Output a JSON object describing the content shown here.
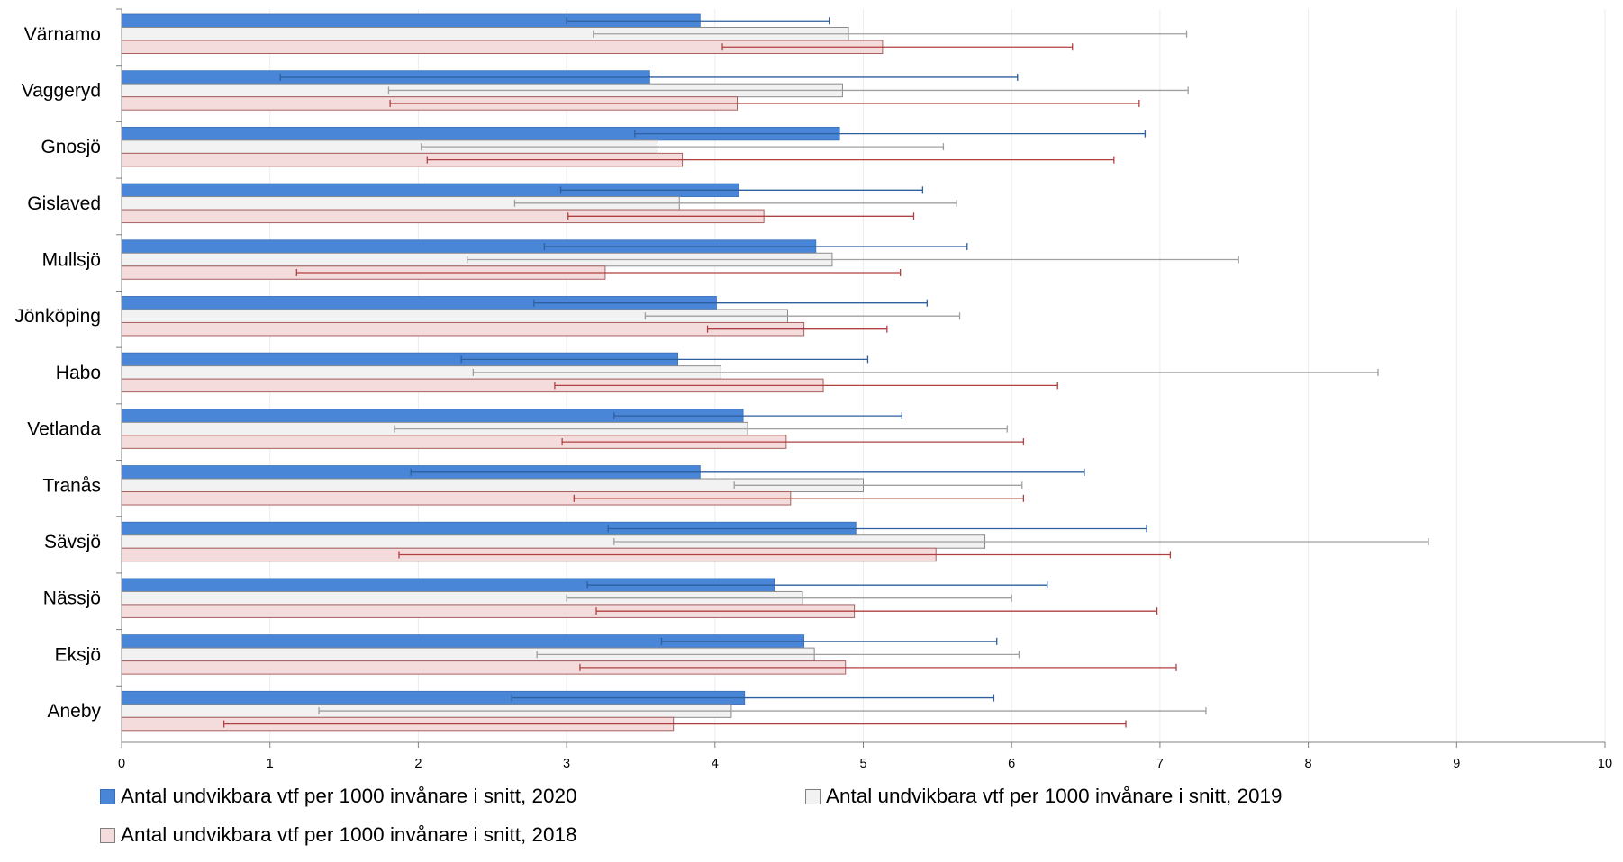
{
  "chart_data": {
    "type": "bar",
    "orientation": "horizontal",
    "categories": [
      "Värnamo",
      "Vaggeryd",
      "Gnosjö",
      "Gislaved",
      "Mullsjö",
      "Jönköping",
      "Habo",
      "Vetlanda",
      "Tranås",
      "Sävsjö",
      "Nässjö",
      "Eksjö",
      "Aneby"
    ],
    "xlim": [
      0,
      10
    ],
    "x_ticks": [
      "0",
      "1",
      "2",
      "3",
      "4",
      "5",
      "6",
      "7",
      "8",
      "9",
      "10"
    ],
    "grid": true,
    "legend_position": "bottom",
    "error_bars": true,
    "series": [
      {
        "name": "Antal undvikbara vtf per 1000 invånare i snitt, 2020",
        "color": "#4a86d8",
        "values": [
          3.9,
          3.56,
          4.84,
          4.16,
          4.68,
          4.01,
          3.75,
          4.19,
          3.9,
          4.95,
          4.4,
          4.6,
          4.2
        ],
        "error_low": [
          3.0,
          1.07,
          3.46,
          2.96,
          2.85,
          2.78,
          2.29,
          3.32,
          1.95,
          3.28,
          3.14,
          3.64,
          2.63
        ],
        "error_high": [
          4.77,
          6.04,
          6.9,
          5.4,
          5.7,
          5.43,
          5.03,
          5.26,
          6.49,
          6.91,
          6.24,
          5.9,
          5.88
        ]
      },
      {
        "name": "Antal undvikbara vtf per 1000 invånare i snitt, 2019",
        "color": "#f2f2f2",
        "values": [
          4.9,
          4.86,
          3.61,
          3.76,
          4.79,
          4.49,
          4.04,
          4.22,
          5.0,
          5.82,
          4.59,
          4.67,
          4.11
        ],
        "error_low": [
          3.18,
          1.8,
          2.02,
          2.65,
          2.33,
          3.53,
          2.37,
          1.84,
          4.13,
          3.32,
          3.0,
          2.8,
          1.33
        ],
        "error_high": [
          7.18,
          7.19,
          5.54,
          5.63,
          7.53,
          5.65,
          8.47,
          5.97,
          6.07,
          8.81,
          6.0,
          6.05,
          7.31
        ]
      },
      {
        "name": "Antal undvikbara vtf per 1000 invånare i snitt, 2018",
        "color": "#f5dcdc",
        "values": [
          5.13,
          4.15,
          3.78,
          4.33,
          3.26,
          4.6,
          4.73,
          4.48,
          4.51,
          5.49,
          4.94,
          4.88,
          3.72
        ],
        "error_low": [
          4.05,
          1.81,
          2.06,
          3.01,
          1.18,
          3.95,
          2.92,
          2.97,
          3.05,
          1.87,
          3.2,
          3.09,
          0.69
        ],
        "error_high": [
          6.41,
          6.86,
          6.69,
          5.34,
          5.25,
          5.16,
          6.31,
          6.08,
          6.08,
          7.07,
          6.98,
          7.11,
          6.77
        ]
      }
    ]
  }
}
